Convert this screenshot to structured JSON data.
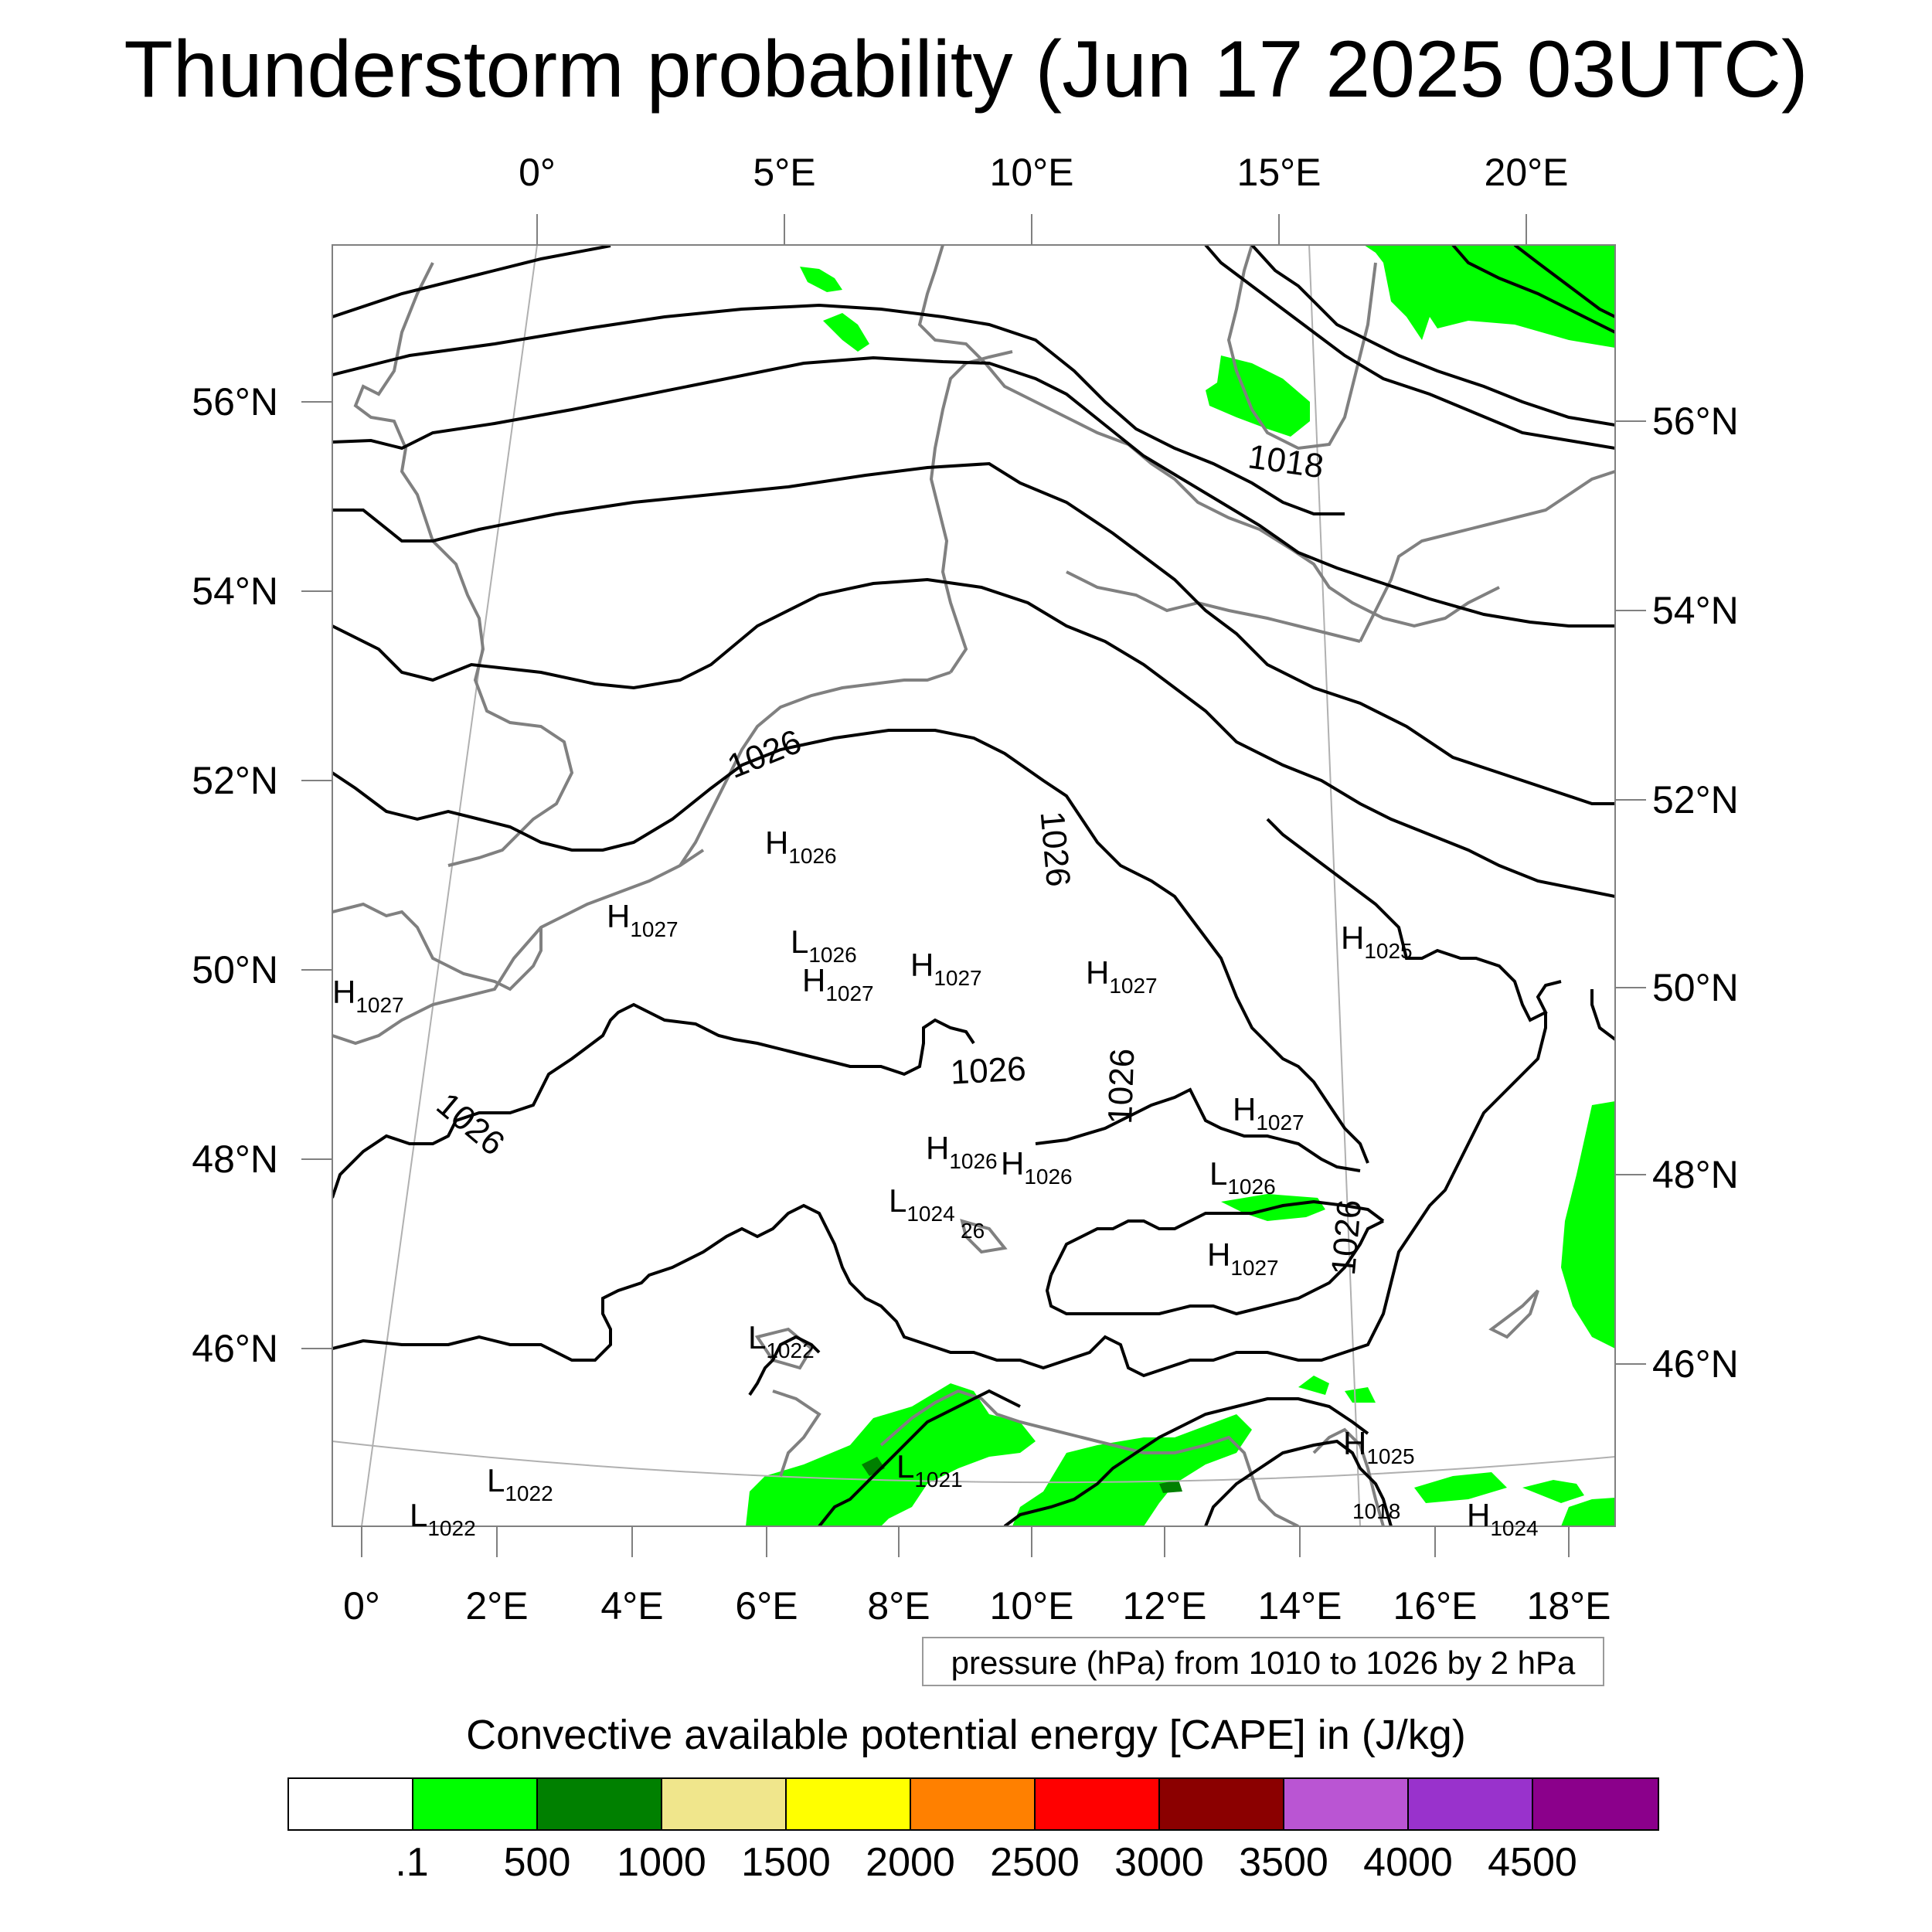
{
  "title": "Thunderstorm probability (Jun 17 2025 03UTC)",
  "axes": {
    "top_lon": [
      "0°",
      "5°E",
      "10°E",
      "15°E",
      "20°E"
    ],
    "bottom_lon": [
      "0°",
      "2°E",
      "4°E",
      "6°E",
      "8°E",
      "10°E",
      "12°E",
      "14°E",
      "16°E",
      "18°E"
    ],
    "left_lat": [
      "56°N",
      "54°N",
      "52°N",
      "50°N",
      "48°N",
      "46°N"
    ],
    "right_lat": [
      "56°N",
      "54°N",
      "52°N",
      "50°N",
      "48°N",
      "46°N"
    ]
  },
  "map": {
    "pressure_labels": [
      {
        "text": "1018"
      },
      {
        "text": "1026"
      },
      {
        "text": "1026"
      },
      {
        "text": "1026"
      },
      {
        "text": "1026"
      },
      {
        "text": "1026"
      },
      {
        "text": "1026"
      },
      {
        "text": "1018"
      }
    ],
    "pressure_systems": [
      {
        "letter": "H",
        "value": "1026"
      },
      {
        "letter": "H",
        "value": "1027"
      },
      {
        "letter": "L",
        "value": "1026"
      },
      {
        "letter": "H",
        "value": "1027"
      },
      {
        "letter": "H",
        "value": "1027"
      },
      {
        "letter": "H",
        "value": "1027"
      },
      {
        "letter": "H",
        "value": "1025"
      },
      {
        "letter": "H",
        "value": "1027"
      },
      {
        "letter": "H",
        "value": "1027"
      },
      {
        "letter": "H",
        "value": "1026"
      },
      {
        "letter": "H",
        "value": "1026"
      },
      {
        "letter": "L",
        "value": "1026"
      },
      {
        "letter": "L",
        "value": "1024"
      },
      {
        "letter": "",
        "value": "26"
      },
      {
        "letter": "H",
        "value": "1027"
      },
      {
        "letter": "L",
        "value": "1022"
      },
      {
        "letter": "L",
        "value": "1022"
      },
      {
        "letter": "L",
        "value": "1021"
      },
      {
        "letter": "H",
        "value": "1025"
      },
      {
        "letter": "L",
        "value": "1022"
      },
      {
        "letter": "H",
        "value": "1024"
      }
    ],
    "colors": {
      "cape_low": "#00ff00",
      "cape_mid": "#008000",
      "coastline": "#808080",
      "isobar": "#000000",
      "graticule": "#b0b0b0"
    }
  },
  "contour_info": "pressure (hPa) from 1010 to 1026 by 2 hPa",
  "legend": {
    "title": "Convective available potential energy [CAPE] in (J/kg)",
    "colors": [
      "#ffffff",
      "#00ff00",
      "#008000",
      "#f0e68c",
      "#ffff00",
      "#ff8000",
      "#ff0000",
      "#8b0000",
      "#ba55d3",
      "#9932cc",
      "#8b008b"
    ],
    "labels": [
      ".1",
      "500",
      "1000",
      "1500",
      "2000",
      "2500",
      "3000",
      "3500",
      "4000",
      "4500"
    ]
  }
}
